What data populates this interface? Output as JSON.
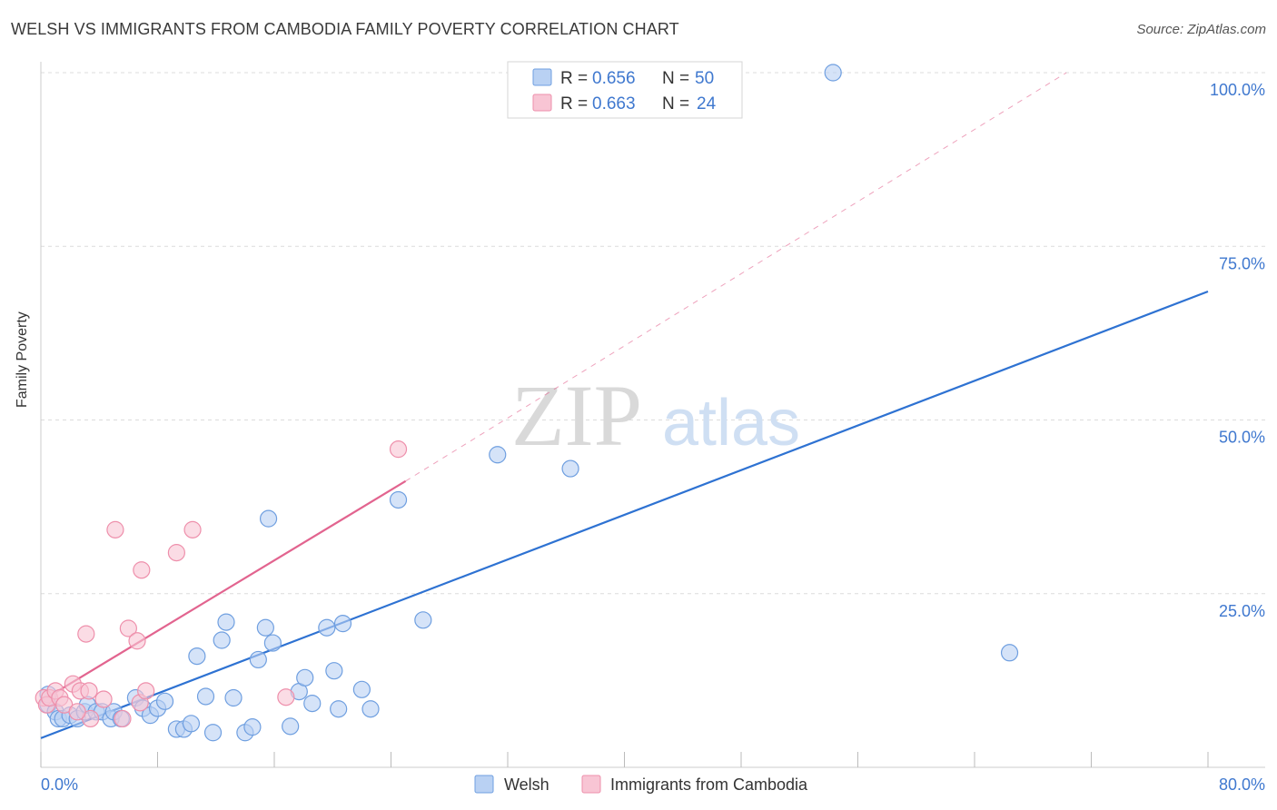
{
  "title": "WELSH VS IMMIGRANTS FROM CAMBODIA FAMILY POVERTY CORRELATION CHART",
  "source": "Source: ZipAtlas.com",
  "watermark": {
    "zip": "ZIP",
    "atlas": "atlas"
  },
  "colors": {
    "welsh": "#6f9fe0",
    "welsh_fill": "#b9d1f3",
    "welsh_line": "#2e72d2",
    "cambodia": "#ee8fab",
    "cambodia_fill": "#f8c5d4",
    "cambodia_line": "#e2648f",
    "tick_label": "#3f78cf",
    "grid": "#dcdcdc"
  },
  "legend_top": [
    {
      "r_label": "R = ",
      "r_value": "0.656",
      "n_label": "N = ",
      "n_value": "50"
    },
    {
      "r_label": "R = ",
      "r_value": "0.663",
      "n_label": "N = ",
      "n_value": "24"
    }
  ],
  "chart_data": {
    "type": "scatter",
    "title": "WELSH VS IMMIGRANTS FROM CAMBODIA FAMILY POVERTY CORRELATION CHART",
    "xlabel": "",
    "ylabel": "Family Poverty",
    "xlim": [
      0,
      80
    ],
    "ylim": [
      0,
      100
    ],
    "x_tick_labels": [
      "0.0%",
      "80.0%"
    ],
    "y_ticks": [
      25,
      50,
      75,
      100
    ],
    "y_tick_labels": [
      "25.0%",
      "50.0%",
      "75.0%",
      "100.0%"
    ],
    "grid": true,
    "series": [
      {
        "name": "Welsh",
        "R": 0.656,
        "N": 50,
        "trend": {
          "x": [
            0,
            80
          ],
          "y": [
            4.2,
            68.5
          ],
          "dashed_extension": false
        },
        "points": [
          [
            0.5,
            10.5
          ],
          [
            0.5,
            9
          ],
          [
            1,
            8
          ],
          [
            1.2,
            7
          ],
          [
            1.5,
            7
          ],
          [
            2,
            7.5
          ],
          [
            2.5,
            7
          ],
          [
            3,
            8
          ],
          [
            3.2,
            9
          ],
          [
            3.8,
            8
          ],
          [
            4.2,
            8
          ],
          [
            4.8,
            7
          ],
          [
            5,
            8
          ],
          [
            5.5,
            7
          ],
          [
            6.5,
            10
          ],
          [
            7,
            8.5
          ],
          [
            7.5,
            7.5
          ],
          [
            8,
            8.5
          ],
          [
            8.5,
            9.5
          ],
          [
            9.3,
            5.5
          ],
          [
            9.8,
            5.5
          ],
          [
            10.3,
            6.3
          ],
          [
            10.7,
            16
          ],
          [
            11.3,
            10.2
          ],
          [
            11.8,
            5
          ],
          [
            12.4,
            18.3
          ],
          [
            12.7,
            20.9
          ],
          [
            13.2,
            10
          ],
          [
            14,
            5
          ],
          [
            14.5,
            5.8
          ],
          [
            14.9,
            15.5
          ],
          [
            15.4,
            20.1
          ],
          [
            15.6,
            35.8
          ],
          [
            15.9,
            17.9
          ],
          [
            17.1,
            5.9
          ],
          [
            17.7,
            10.9
          ],
          [
            18.1,
            12.9
          ],
          [
            18.6,
            9.2
          ],
          [
            19.6,
            20.1
          ],
          [
            20.1,
            13.9
          ],
          [
            20.4,
            8.4
          ],
          [
            20.7,
            20.7
          ],
          [
            22,
            11.2
          ],
          [
            22.6,
            8.4
          ],
          [
            24.5,
            38.5
          ],
          [
            26.2,
            21.2
          ],
          [
            31.3,
            45
          ],
          [
            36.3,
            43
          ],
          [
            54.3,
            100
          ],
          [
            66.4,
            16.5
          ]
        ]
      },
      {
        "name": "Immigrants from Cambodia",
        "R": 0.663,
        "N": 24,
        "trend": {
          "x": [
            0,
            25
          ],
          "y": [
            9.5,
            41.2
          ],
          "dashed_extension": true,
          "dashed_to": {
            "x": 70.3,
            "y": 100
          }
        },
        "points": [
          [
            0.2,
            10
          ],
          [
            0.4,
            9
          ],
          [
            0.6,
            10
          ],
          [
            1,
            11
          ],
          [
            1.3,
            10
          ],
          [
            1.6,
            9
          ],
          [
            2.2,
            12
          ],
          [
            2.7,
            11
          ],
          [
            3.1,
            19.2
          ],
          [
            3.3,
            11
          ],
          [
            3.4,
            7
          ],
          [
            4.3,
            9.8
          ],
          [
            5.1,
            34.2
          ],
          [
            5.6,
            7
          ],
          [
            6,
            20
          ],
          [
            6.6,
            18.2
          ],
          [
            6.8,
            9.3
          ],
          [
            6.9,
            28.4
          ],
          [
            7.2,
            11
          ],
          [
            9.3,
            30.9
          ],
          [
            10.4,
            34.2
          ],
          [
            16.8,
            10.1
          ],
          [
            24.5,
            45.8
          ],
          [
            2.5,
            8
          ]
        ]
      }
    ],
    "legend_bottom": [
      "Welsh",
      "Immigrants from Cambodia"
    ]
  }
}
